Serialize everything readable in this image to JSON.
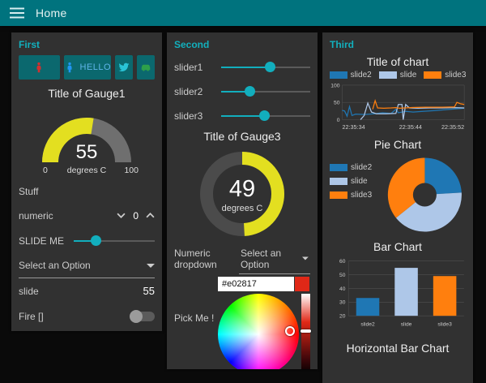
{
  "titlebar": {
    "title": "Home",
    "bg": "#00737e"
  },
  "theme": {
    "page_bg": "#0a0a0a",
    "panel_bg": "#313131",
    "group_title_color": "#12b0bd",
    "accent": "#12aebd",
    "button_bg": "#0b686e"
  },
  "first": {
    "title": "First",
    "buttons": [
      {
        "icon": "male-icon",
        "icon_color": "#d3302f",
        "label": ""
      },
      {
        "icon": "male-icon",
        "icon_color": "#2196f3",
        "label": "HELLO"
      },
      {
        "icon": "twitter-icon",
        "icon_color": "#29c3d6",
        "label": ""
      },
      {
        "icon": "car-icon",
        "icon_color": "#2ea04a",
        "label": ""
      }
    ],
    "gauge1": {
      "title": "Title of Gauge1",
      "value": "55",
      "units": "degrees C",
      "min": "0",
      "max": "100",
      "percent": 55,
      "color": "#e3df20",
      "track": "#6f6f6f"
    },
    "text_label": "Stuff",
    "numeric": {
      "label": "numeric",
      "value": "0"
    },
    "slider": {
      "label": "SLIDE ME",
      "percent": 28
    },
    "dropdown": {
      "value": "Select an Option"
    },
    "text_row": {
      "label": "slide",
      "value": "55"
    },
    "switch_row": {
      "label": "Fire []",
      "on": false
    }
  },
  "second": {
    "title": "Second",
    "sliders": [
      {
        "label": "slider1",
        "percent": 55
      },
      {
        "label": "slider2",
        "percent": 33
      },
      {
        "label": "slider3",
        "percent": 49
      }
    ],
    "gauge3": {
      "title": "Title of Gauge3",
      "value": "49",
      "units": "degrees C",
      "percent": 49,
      "color": "#e3df20",
      "track": "#4b4b4b"
    },
    "numeric_dropdown": {
      "label": "Numeric dropdown",
      "value": "Select an Option"
    },
    "colour_picker": {
      "label": "Pick Me !",
      "hex": "#e02817"
    }
  },
  "third": {
    "title": "Third"
  },
  "chart_data": [
    {
      "id": "timeline",
      "type": "line",
      "title": "Title of chart",
      "x_tick_labels": [
        "22:35:34",
        "22:35:44",
        "22:35:52"
      ],
      "x_tick_pos": [
        0,
        56,
        100
      ],
      "y_ticks": [
        0,
        50,
        100
      ],
      "ylim": [
        0,
        100
      ],
      "grid": true,
      "legend_position": "top",
      "series": [
        {
          "name": "slide2",
          "color": "#1f77b4",
          "points": [
            [
              0,
              27
            ],
            [
              2,
              25
            ],
            [
              4,
              10
            ],
            [
              6,
              38
            ],
            [
              8,
              12
            ],
            [
              11,
              16
            ],
            [
              18,
              15
            ],
            [
              26,
              17
            ],
            [
              33,
              20
            ],
            [
              40,
              18
            ],
            [
              44,
              30
            ],
            [
              46,
              20
            ],
            [
              52,
              24
            ],
            [
              58,
              22
            ],
            [
              66,
              24
            ],
            [
              75,
              26
            ],
            [
              85,
              29
            ],
            [
              100,
              33
            ]
          ]
        },
        {
          "name": "slide",
          "color": "#aec7e8",
          "points": [
            [
              15,
              0
            ],
            [
              18,
              12
            ],
            [
              21,
              48
            ],
            [
              24,
              22
            ],
            [
              28,
              17
            ],
            [
              36,
              17
            ],
            [
              44,
              18
            ],
            [
              46,
              44
            ],
            [
              49,
              44
            ],
            [
              50,
              0
            ],
            [
              52,
              44
            ],
            [
              55,
              34
            ],
            [
              62,
              33
            ],
            [
              72,
              34
            ],
            [
              82,
              34
            ],
            [
              92,
              35
            ],
            [
              100,
              34
            ]
          ]
        },
        {
          "name": "slide3",
          "color": "#ff7f0e",
          "points": [
            [
              25,
              30
            ],
            [
              27,
              55
            ],
            [
              29,
              34
            ],
            [
              34,
              33
            ],
            [
              40,
              34
            ],
            [
              44,
              35
            ],
            [
              47,
              33
            ],
            [
              56,
              35
            ],
            [
              68,
              36
            ],
            [
              82,
              36
            ],
            [
              92,
              37
            ],
            [
              94,
              50
            ],
            [
              97,
              46
            ],
            [
              100,
              44
            ]
          ]
        }
      ]
    },
    {
      "id": "pie",
      "type": "pie",
      "title": "Pie Chart",
      "donut": true,
      "labels": [
        "slide2",
        "slide",
        "slide3"
      ],
      "values": [
        33,
        55,
        49
      ],
      "colors": [
        "#1f77b4",
        "#aec7e8",
        "#ff7f0e"
      ],
      "legend_position": "left"
    },
    {
      "id": "bar",
      "type": "bar",
      "title": "Bar Chart",
      "categories": [
        "slide2",
        "slide",
        "slide3"
      ],
      "values": [
        33,
        55,
        49
      ],
      "colors": [
        "#1f77b4",
        "#aec7e8",
        "#ff7f0e"
      ],
      "ylim": [
        20,
        60
      ],
      "y_ticks": [
        20,
        30,
        40,
        50,
        60
      ],
      "grid": true
    },
    {
      "id": "hbar",
      "type": "bar-horizontal",
      "title": "Horizontal Bar Chart"
    }
  ]
}
